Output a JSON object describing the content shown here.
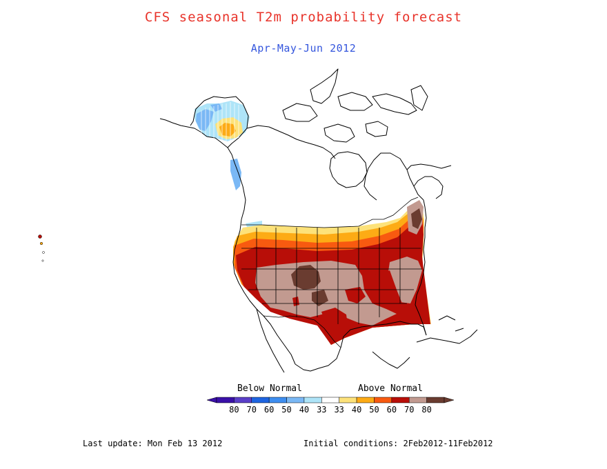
{
  "title": "CFS seasonal T2m probability forecast",
  "subtitle": "Apr-May-Jun 2012",
  "legend": {
    "below_label": "Below Normal",
    "above_label": "Above Normal",
    "bins": [
      {
        "label": "80",
        "color": "#3a10a8"
      },
      {
        "label": "70",
        "color": "#5a3fc8"
      },
      {
        "label": "60",
        "color": "#1e64e0"
      },
      {
        "label": "50",
        "color": "#3e8ef0"
      },
      {
        "label": "40",
        "color": "#7ab8f5"
      },
      {
        "label": "33",
        "color": "#aee4f8"
      },
      {
        "label": "33",
        "color": "#ffffff"
      },
      {
        "label": "40",
        "color": "#fde27a"
      },
      {
        "label": "50",
        "color": "#fdab15"
      },
      {
        "label": "60",
        "color": "#f85a10"
      },
      {
        "label": "70",
        "color": "#b80e08"
      },
      {
        "label": "80",
        "color": "#c29a90"
      },
      {
        "label": "",
        "color": "#6a3c30"
      }
    ]
  },
  "colors": {
    "light_blue": "#aee4f8",
    "blue": "#7ab8f5",
    "yellow": "#fde27a",
    "orange": "#fdab15",
    "red_orange": "#f85a10",
    "dark_red": "#b80e08",
    "tan": "#c29a90",
    "brown": "#6a3c30"
  },
  "footer": {
    "last_update": "Last update: Mon Feb 13 2012",
    "initial_conditions": "Initial conditions: 2Feb2012-11Feb2012"
  }
}
